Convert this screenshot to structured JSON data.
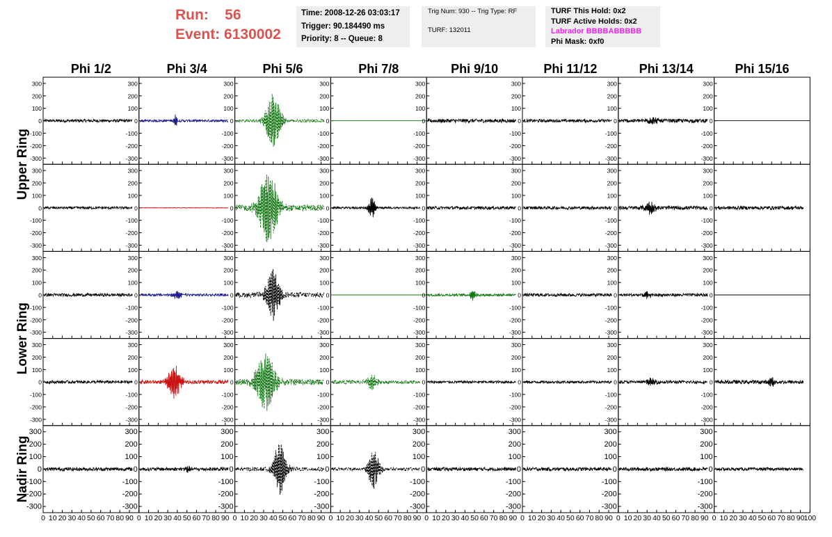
{
  "run": {
    "run_label": "Run:",
    "run_value": "56",
    "event_label": "Event:",
    "event_value": "6130002",
    "color": "#d9534f"
  },
  "time_box": {
    "time": "Time: 2008-12-26 03:03:17",
    "trigger": "Trigger: 90.184490 ms",
    "priority": "Priority: 8 -- Queue: 8"
  },
  "trig_box": {
    "trig": "Trig Num: 930 -- Trig Type: RF",
    "turf": "TURF: 132011"
  },
  "turf_box": {
    "hold": "TURF This Hold: 0x2",
    "active": "TURF Active Holds: 0x2",
    "labrador": "Labrador BBBBABBBBB",
    "labrador_color": "#ee22ee",
    "phimask": "Phi Mask: 0xf0"
  },
  "chart_data": {
    "type": "line",
    "columns": [
      "Phi 1/2",
      "Phi 3/4",
      "Phi 5/6",
      "Phi 7/8",
      "Phi 9/10",
      "Phi 11/12",
      "Phi 13/14",
      "Phi 15/16"
    ],
    "ring_labels": [
      "Upper Ring",
      "Lower Ring",
      "Nadir Ring"
    ],
    "ylim": [
      -350,
      350
    ],
    "y_ticks": [
      300,
      200,
      100,
      0,
      -100,
      -200,
      -300
    ],
    "y_tick_labels": [
      "300",
      "200",
      "100",
      "0",
      "-100",
      "-200",
      "-300"
    ],
    "xlim": [
      0,
      100
    ],
    "x_ticks": [
      0,
      10,
      20,
      30,
      40,
      50,
      60,
      70,
      80,
      90,
      100
    ],
    "x_tick_labels": [
      "0",
      "10",
      "20",
      "30",
      "40",
      "50",
      "60",
      "70",
      "80",
      "90",
      "100"
    ],
    "colors": {
      "k": "#000000",
      "b": "#1a1a8c",
      "r": "#cc1111",
      "g": "#117711"
    },
    "panels": [
      [
        {
          "color": "k",
          "amp": 12,
          "burst": null
        },
        {
          "color": "b",
          "amp": 10,
          "burst": {
            "x": 38,
            "amp": 45,
            "w": 2
          }
        },
        {
          "color": "g",
          "amp": 12,
          "burst": {
            "x": 40,
            "amp": 210,
            "w": 8
          },
          "dashed": true
        },
        {
          "color": "g",
          "amp": 0,
          "burst": null
        },
        {
          "color": "k",
          "amp": 15,
          "burst": null
        },
        {
          "color": "k",
          "amp": 12,
          "burst": null
        },
        {
          "color": "k",
          "amp": 15,
          "burst": {
            "x": 35,
            "amp": 25,
            "w": 6
          }
        },
        {
          "color": "k",
          "amp": 0,
          "burst": null
        }
      ],
      [
        {
          "color": "k",
          "amp": 10,
          "burst": null
        },
        {
          "color": "r",
          "amp": 2,
          "burst": null
        },
        {
          "color": "g",
          "amp": 25,
          "burst": {
            "x": 35,
            "amp": 280,
            "w": 10
          },
          "dashed": true
        },
        {
          "color": "k",
          "amp": 8,
          "burst": {
            "x": 43,
            "amp": 80,
            "w": 4
          }
        },
        {
          "color": "k",
          "amp": 12,
          "burst": null
        },
        {
          "color": "k",
          "amp": 12,
          "burst": null
        },
        {
          "color": "k",
          "amp": 15,
          "burst": {
            "x": 33,
            "amp": 45,
            "w": 6
          }
        },
        {
          "color": "k",
          "amp": 14,
          "burst": null
        }
      ],
      [
        {
          "color": "k",
          "amp": 12,
          "burst": null
        },
        {
          "color": "b",
          "amp": 10,
          "burst": {
            "x": 40,
            "amp": 35,
            "w": 5
          }
        },
        {
          "color": "k",
          "amp": 20,
          "burst": {
            "x": 40,
            "amp": 210,
            "w": 7
          },
          "dashed": true
        },
        {
          "color": "g",
          "amp": 0,
          "burst": null
        },
        {
          "color": "g",
          "amp": 10,
          "burst": {
            "x": 48,
            "amp": 40,
            "w": 3
          }
        },
        {
          "color": "k",
          "amp": 12,
          "burst": null
        },
        {
          "color": "k",
          "amp": 12,
          "burst": {
            "x": 30,
            "amp": 25,
            "w": 5
          }
        },
        {
          "color": "k",
          "amp": 0,
          "burst": null
        }
      ],
      [
        {
          "color": "k",
          "amp": 12,
          "burst": null
        },
        {
          "color": "r",
          "amp": 15,
          "burst": {
            "x": 37,
            "amp": 130,
            "w": 7
          }
        },
        {
          "color": "g",
          "amp": 25,
          "burst": {
            "x": 32,
            "amp": 230,
            "w": 10
          },
          "dashed": true
        },
        {
          "color": "g",
          "amp": 15,
          "burst": {
            "x": 43,
            "amp": 55,
            "w": 6
          },
          "dashed": true
        },
        {
          "color": "k",
          "amp": 10,
          "burst": null
        },
        {
          "color": "k",
          "amp": 10,
          "burst": null
        },
        {
          "color": "k",
          "amp": 12,
          "burst": {
            "x": 35,
            "amp": 30,
            "w": 5
          }
        },
        {
          "color": "k",
          "amp": 15,
          "burst": {
            "x": 60,
            "amp": 35,
            "w": 3
          }
        }
      ],
      [
        {
          "color": "k",
          "amp": 14,
          "burst": null
        },
        {
          "color": "k",
          "amp": 14,
          "burst": {
            "x": 50,
            "amp": 25,
            "w": 3
          }
        },
        {
          "color": "k",
          "amp": 15,
          "burst": {
            "x": 47,
            "amp": 200,
            "w": 7
          },
          "dashed": true
        },
        {
          "color": "k",
          "amp": 12,
          "burst": {
            "x": 45,
            "amp": 160,
            "w": 6
          },
          "dashed": true
        },
        {
          "color": "k",
          "amp": 14,
          "burst": null
        },
        {
          "color": "k",
          "amp": 14,
          "burst": null
        },
        {
          "color": "k",
          "amp": 14,
          "burst": null
        },
        {
          "color": "k",
          "amp": 12,
          "burst": null
        }
      ]
    ]
  }
}
